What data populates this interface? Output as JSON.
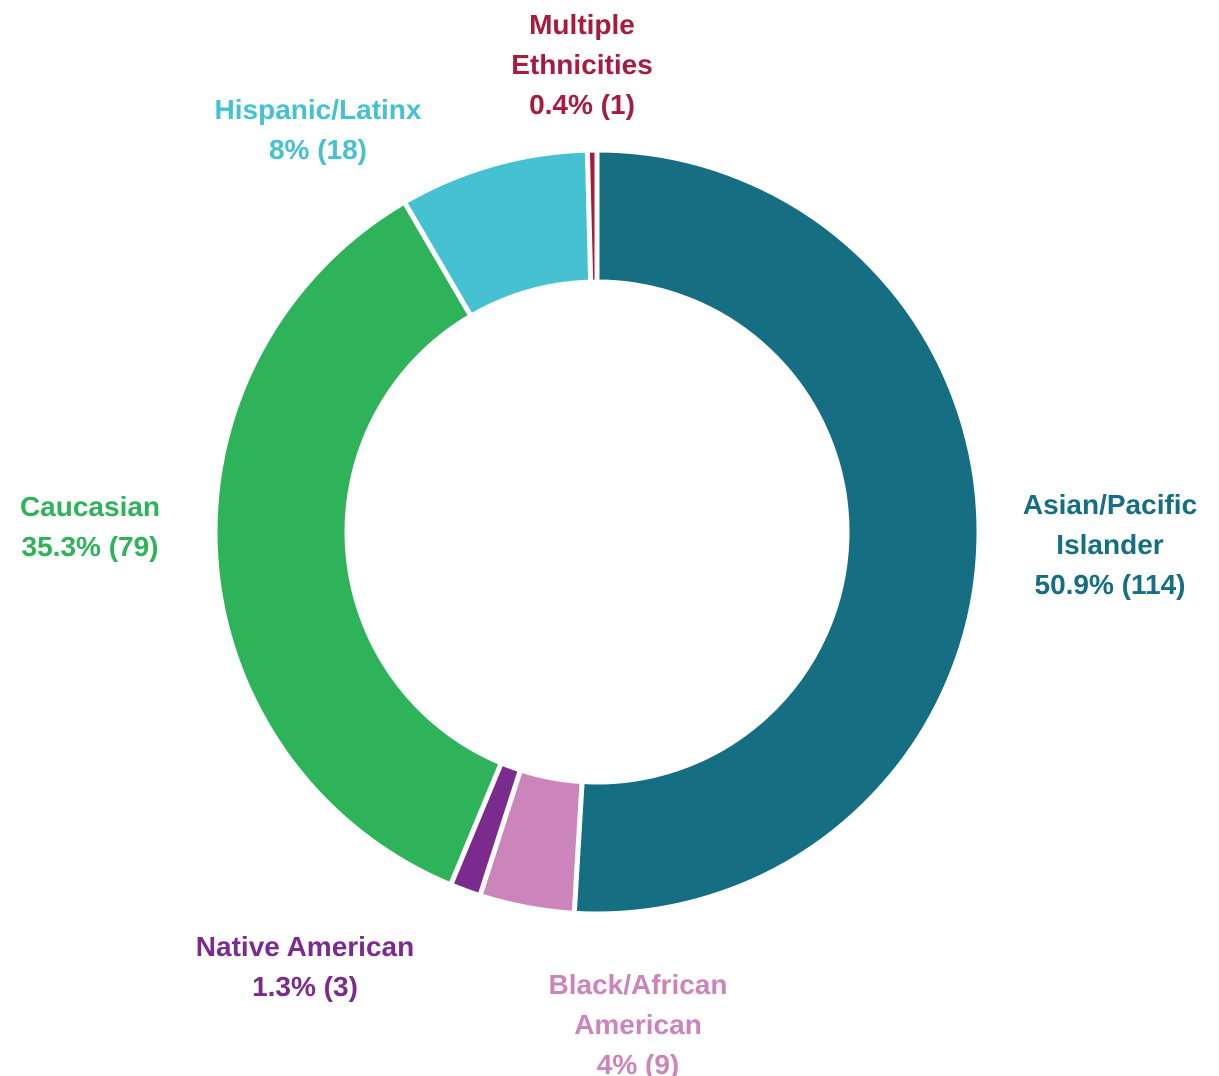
{
  "chart_data": {
    "type": "donut",
    "categories": [
      "Asian/Pacific Islander",
      "Black/African American",
      "Native American",
      "Caucasian",
      "Hispanic/Latinx",
      "Multiple Ethnicities"
    ],
    "values": [
      50.9,
      4,
      1.3,
      35.3,
      8,
      0.4
    ],
    "value_labels": [
      "50.9% (114)",
      "4% (9)",
      "1.3% (3)",
      "35.3% (79)",
      "8% (18)",
      "0.4% (1)"
    ],
    "colors": [
      "#156e82",
      "#cc85ba",
      "#7b2b8e",
      "#2fb35a",
      "#45c1d1",
      "#a61b3f"
    ]
  }
}
